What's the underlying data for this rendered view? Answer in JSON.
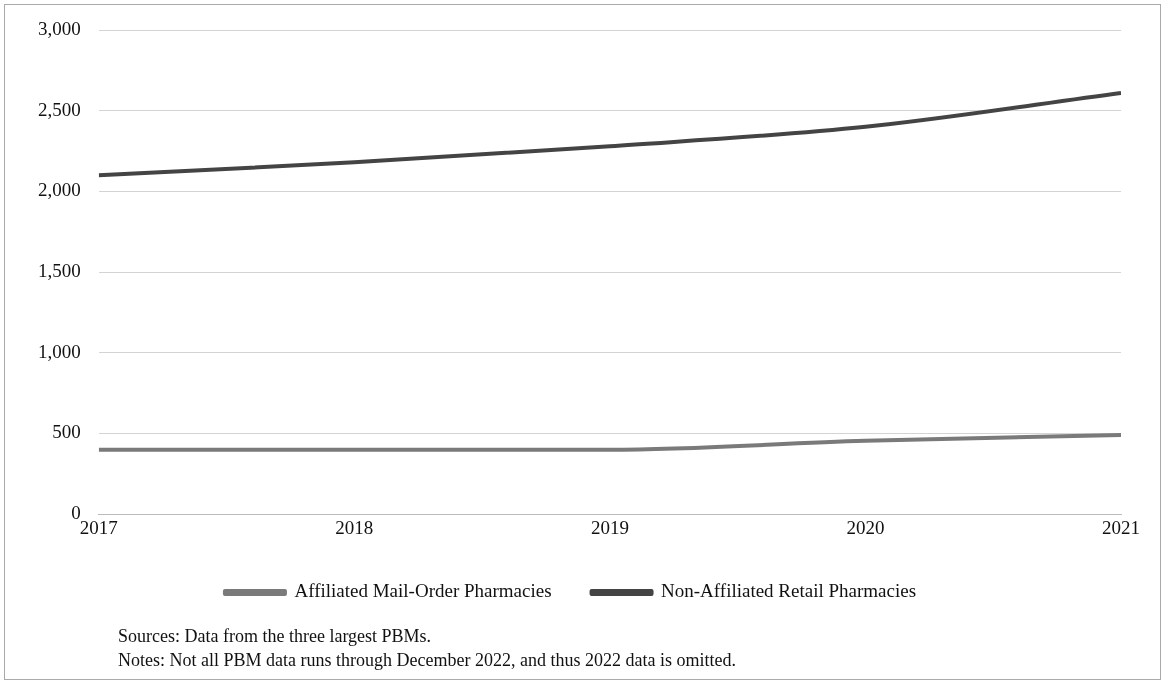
{
  "chart_data": {
    "type": "line",
    "x": [
      2017,
      2018,
      2019,
      2020,
      2021
    ],
    "xlim": [
      2017,
      2021
    ],
    "xticks": [
      2017,
      2018,
      2019,
      2020,
      2021
    ],
    "ylim": [
      0,
      3000
    ],
    "yticks": [
      0,
      {
        "value": 500,
        "label": "500"
      },
      {
        "value": 1000,
        "label": "1,000"
      },
      {
        "value": 1500,
        "label": "1,500"
      },
      {
        "value": 2000,
        "label": "2,000"
      },
      {
        "value": 2500,
        "label": "2,500"
      },
      {
        "value": 3000,
        "label": "3,000"
      }
    ],
    "series": [
      {
        "name": "Affiliated Mail-Order Pharmacies",
        "color": "#7a7a7a",
        "values": [
          400,
          400,
          400,
          455,
          490
        ]
      },
      {
        "name": "Non-Affiliated Retail Pharmacies",
        "color": "#444444",
        "values": [
          2100,
          2180,
          2280,
          2400,
          2610
        ]
      }
    ],
    "grid": "y",
    "legend": "bottom",
    "marker": "none",
    "line_style": "solid",
    "annotations": [
      "Sources: Data from the three largest PBMs.",
      "Notes: Not all PBM data runs through December 2022, and thus 2022 data is omitted."
    ]
  }
}
